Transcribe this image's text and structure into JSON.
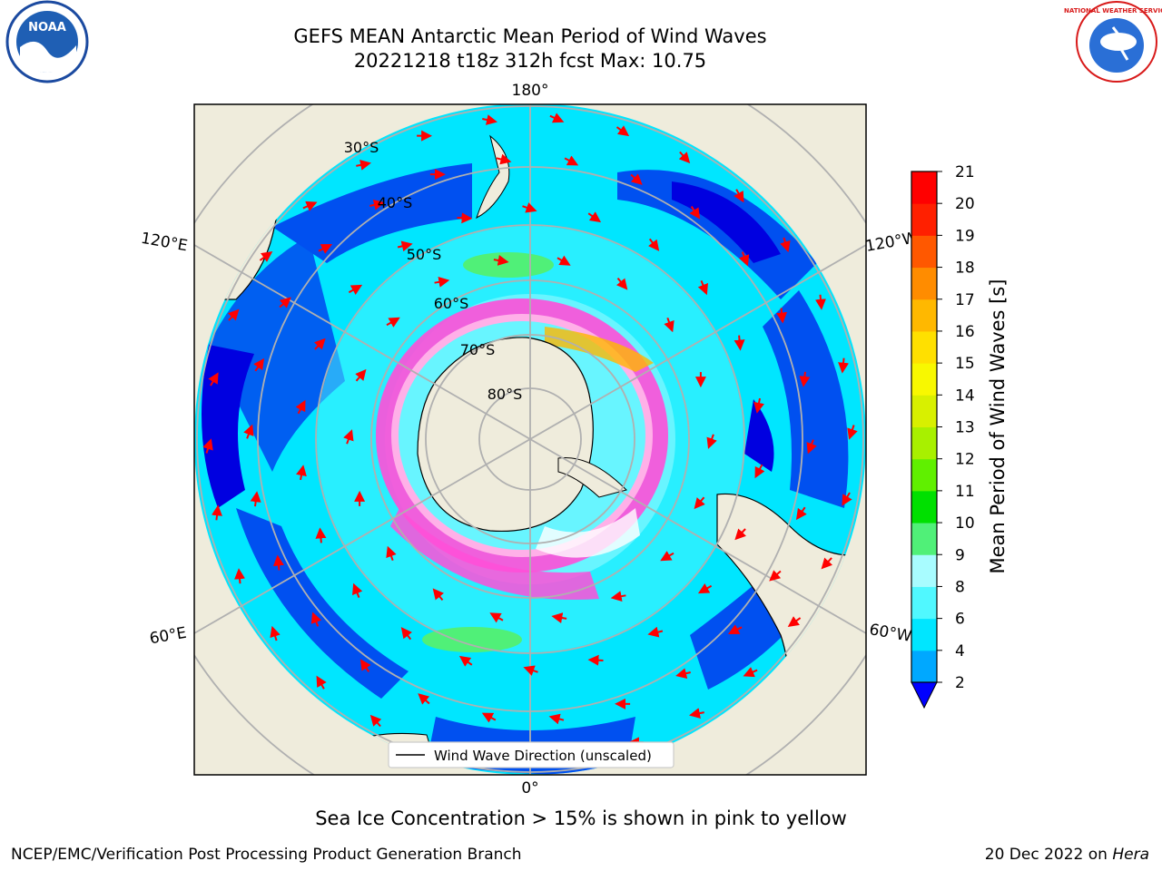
{
  "title": {
    "line1": "GEFS MEAN Antarctic Mean Period of Wind Waves",
    "line2": "20221218 t18z 312h fcst   Max: 10.75"
  },
  "logos": {
    "left": "NOAA",
    "right": "NATIONAL WEATHER SERVICE"
  },
  "map": {
    "longitude_labels": {
      "top": "180°",
      "bottom": "0°",
      "left_upper": "120°E",
      "left_lower": "60°E",
      "right_upper": "120°W",
      "right_lower": "60°W"
    },
    "latitude_labels": [
      "30°S",
      "40°S",
      "50°S",
      "60°S",
      "70°S",
      "80°S"
    ],
    "legend_label": "Wind Wave Direction (unscaled)",
    "colors": {
      "land": "#efecdc",
      "ocean_low": "#0050f0",
      "ocean_mid": "#00e6ff",
      "ice": "#ff4fd8",
      "arrow": "#ff0000"
    }
  },
  "colorbar": {
    "label": "Mean Period of Wind Waves [s]",
    "ticks": [
      "2",
      "4",
      "6",
      "8",
      "9",
      "10",
      "11",
      "12",
      "13",
      "14",
      "15",
      "16",
      "17",
      "18",
      "19",
      "20",
      "21"
    ],
    "colors": [
      "#0050f0",
      "#00a8ff",
      "#00e6ff",
      "#50f8ff",
      "#a8fcff",
      "#50f078",
      "#00e000",
      "#60f000",
      "#a8f000",
      "#d8f000",
      "#f8f800",
      "#ffe000",
      "#ffb800",
      "#ff8c00",
      "#ff5800",
      "#ff2000",
      "#ff0000"
    ]
  },
  "caption": "Sea Ice Concentration > 15% is shown in pink to yellow",
  "footer": {
    "left": "NCEP/EMC/Verification Post Processing Product Generation Branch",
    "date": "20 Dec 2022 on",
    "machine": "Hera"
  }
}
